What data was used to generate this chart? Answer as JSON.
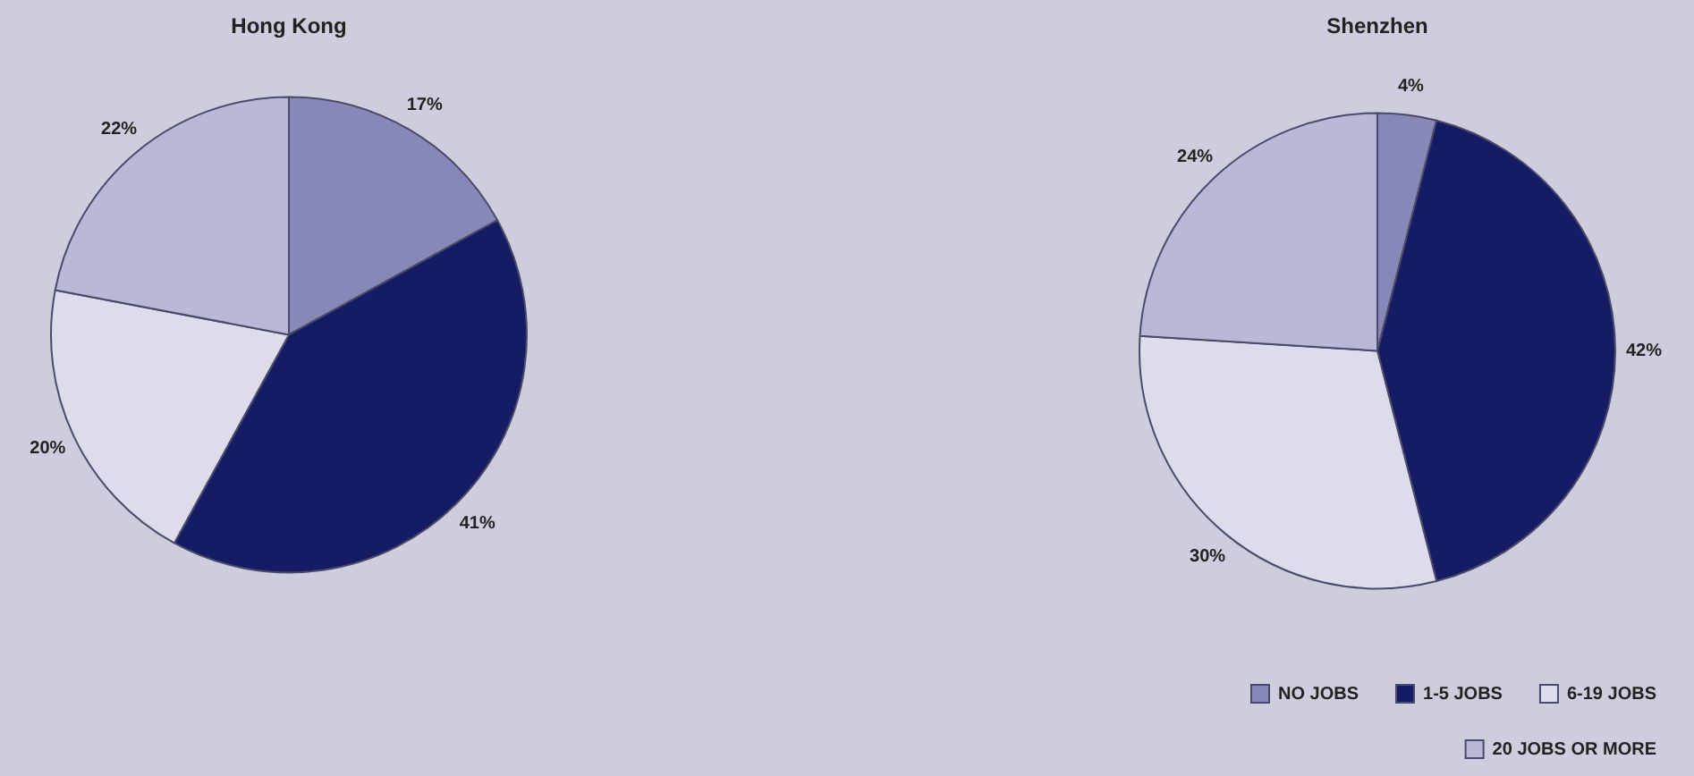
{
  "chart_data": [
    {
      "type": "pie",
      "title": "Hong Kong",
      "categories": [
        null,
        null,
        null,
        null
      ],
      "values": [
        17,
        41,
        20,
        22
      ],
      "value_labels": [
        "17%",
        "41%",
        "20%",
        "22%"
      ],
      "colors": [
        "#8888b8",
        "#161c64",
        "#dcdcec",
        "#b8b8d8"
      ],
      "legend": false
    },
    {
      "type": "pie",
      "title": "Shenzhen",
      "categories": [
        "NO JOBS",
        "1-5 JOBS",
        "6-19 JOBS",
        "20 JOBS OR MORE"
      ],
      "values": [
        4,
        42,
        30,
        24
      ],
      "value_labels": [
        "4%",
        "42%",
        "30%",
        "24%"
      ],
      "colors": [
        "#8888b8",
        "#161c64",
        "#dcdcec",
        "#b8b8d8"
      ],
      "legend": "bottom right"
    }
  ]
}
